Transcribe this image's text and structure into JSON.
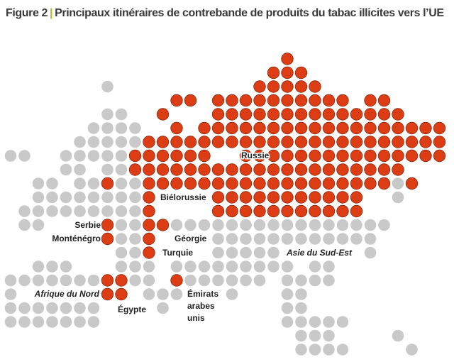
{
  "figure": {
    "number": "Figure 2",
    "separator": "|",
    "title": "Principaux itinéraires de contrebande de produits du tabac illicites vers l’UE"
  },
  "labels": {
    "russie": "Russie",
    "bielorussie": "Biélorussie",
    "serbie": "Serbie",
    "montenegro": "Monténégro",
    "georgie": "Géorgie",
    "turquie": "Turquie",
    "asie": "Asie du Sud-Est",
    "afrique": "Afrique du Nord",
    "egypte": "Égypte",
    "emirats": "Émirats arabes unis"
  }
}
